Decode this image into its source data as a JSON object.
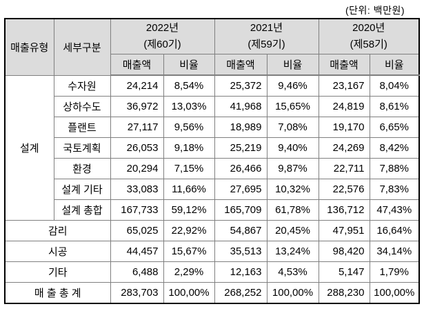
{
  "unit_label": "(단위: 백만원)",
  "table": {
    "headers": {
      "sales_type": "매출유형",
      "detail": "세부구분",
      "sales_amount": "매출액",
      "ratio": "비율"
    },
    "year_groups": [
      {
        "year": "2022년",
        "term": "(제60기)"
      },
      {
        "year": "2021년",
        "term": "(제59기)"
      },
      {
        "year": "2020년",
        "term": "(제58기)"
      }
    ],
    "design_group_label": "설계",
    "design_rows": [
      {
        "label": "수자원",
        "values": [
          "24,214",
          "8,54%",
          "25,372",
          "9,46%",
          "23,167",
          "8,04%"
        ]
      },
      {
        "label": "상하수도",
        "values": [
          "36,972",
          "13,03%",
          "41,968",
          "15,65%",
          "24,819",
          "8,61%"
        ]
      },
      {
        "label": "플랜트",
        "values": [
          "27,117",
          "9,56%",
          "18,989",
          "7,08%",
          "19,170",
          "6,65%"
        ]
      },
      {
        "label": "국토계획",
        "values": [
          "26,053",
          "9,18%",
          "25,219",
          "9,40%",
          "24,269",
          "8,42%"
        ]
      },
      {
        "label": "환경",
        "values": [
          "20,294",
          "7,15%",
          "26,466",
          "9,87%",
          "22,711",
          "7,88%"
        ]
      },
      {
        "label": "설계 기타",
        "values": [
          "33,083",
          "11,66%",
          "27,695",
          "10,32%",
          "22,576",
          "7,83%"
        ]
      },
      {
        "label": "설계 총합",
        "values": [
          "167,733",
          "59,12%",
          "165,709",
          "61,78%",
          "136,712",
          "47,43%"
        ]
      }
    ],
    "summary_rows": [
      {
        "label": "감리",
        "values": [
          "65,025",
          "22,92%",
          "54,867",
          "20,45%",
          "47,951",
          "16,64%"
        ]
      },
      {
        "label": "시공",
        "values": [
          "44,457",
          "15,67%",
          "35,513",
          "13,24%",
          "98,420",
          "34,14%"
        ]
      },
      {
        "label": "기타",
        "values": [
          "6,488",
          "2,29%",
          "12,163",
          "4,53%",
          "5,147",
          "1,79%"
        ]
      },
      {
        "label": "매 출 총 계",
        "values": [
          "283,703",
          "100,00%",
          "268,252",
          "100,00%",
          "288,230",
          "100,00%"
        ]
      }
    ]
  }
}
